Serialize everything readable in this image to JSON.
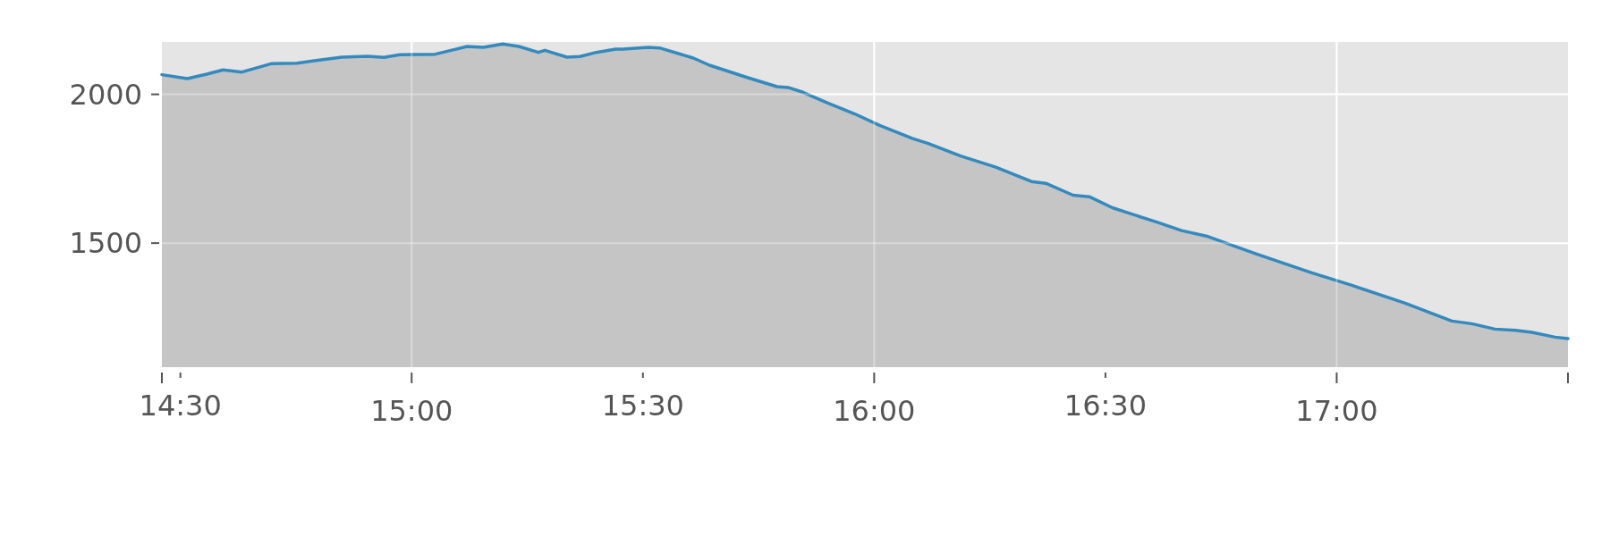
{
  "chart_data": {
    "type": "area",
    "x": [
      14.46,
      14.515,
      14.557,
      14.592,
      14.633,
      14.696,
      14.752,
      14.793,
      14.849,
      14.905,
      14.94,
      14.974,
      15.051,
      15.12,
      15.155,
      15.197,
      15.232,
      15.274,
      15.288,
      15.336,
      15.364,
      15.399,
      15.441,
      15.456,
      15.512,
      15.536,
      15.609,
      15.644,
      15.727,
      15.79,
      15.814,
      15.846,
      15.901,
      15.957,
      16.013,
      16.082,
      16.117,
      16.187,
      16.263,
      16.34,
      16.371,
      16.43,
      16.465,
      16.515,
      16.614,
      16.665,
      16.722,
      16.824,
      16.946,
      17.033,
      17.148,
      17.249,
      17.292,
      17.342,
      17.386,
      17.422,
      17.472,
      17.5
    ],
    "series": [
      {
        "color": "#348abd",
        "values": [
          2066,
          2053,
          2068,
          2082,
          2075,
          2103,
          2105,
          2114,
          2125,
          2128,
          2124,
          2133,
          2135,
          2161,
          2158,
          2169,
          2161,
          2141,
          2148,
          2125,
          2127,
          2141,
          2152,
          2152,
          2158,
          2156,
          2122,
          2098,
          2056,
          2026,
          2023,
          2007,
          1970,
          1935,
          1895,
          1852,
          1835,
          1793,
          1755,
          1707,
          1701,
          1661,
          1656,
          1619,
          1569,
          1542,
          1522,
          1465,
          1400,
          1358,
          1298,
          1238,
          1229,
          1211,
          1207,
          1200,
          1184,
          1179
        ]
      }
    ],
    "xlim": [
      14.46,
      17.5
    ],
    "xticks": [
      {
        "value": 14.46,
        "label": null
      },
      {
        "value": 14.5,
        "label": "14:30"
      },
      {
        "value": 15,
        "label": "15:00"
      },
      {
        "value": 15.5,
        "label": "15:30"
      },
      {
        "value": 16,
        "label": "16:00"
      },
      {
        "value": 16.5,
        "label": "16:30"
      },
      {
        "value": 17,
        "label": "17:00"
      },
      {
        "value": 17.5,
        "label": null
      }
    ],
    "ylim": [
      1083,
      2176
    ],
    "yticks": [
      1500,
      2000
    ],
    "grid": true
  }
}
